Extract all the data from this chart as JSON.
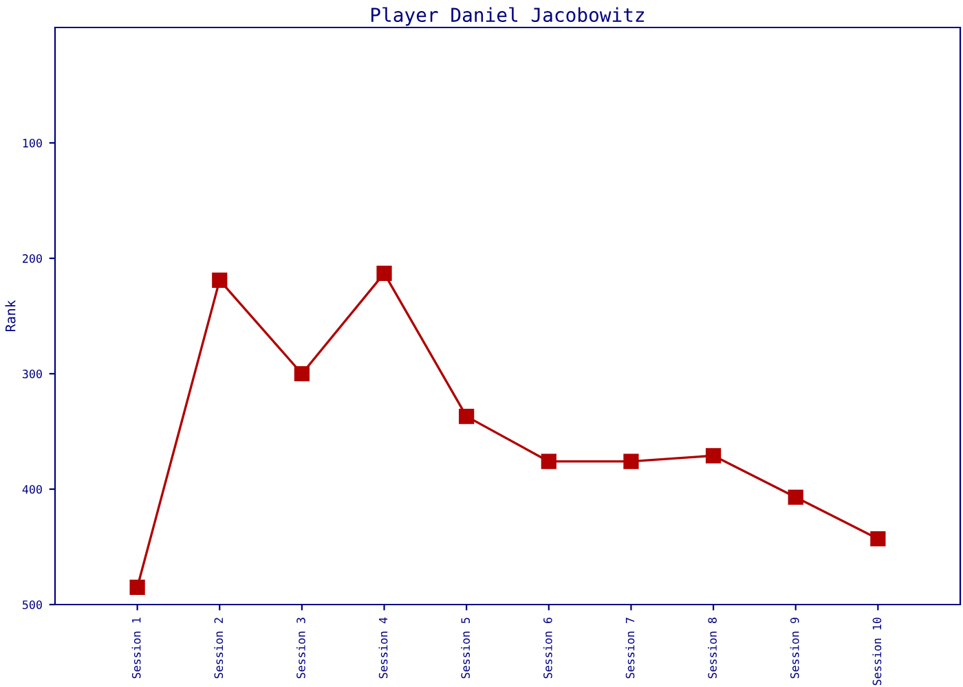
{
  "chart_data": {
    "type": "line",
    "title": "Player Daniel Jacobowitz",
    "ylabel": "Rank",
    "categories": [
      "Session 1",
      "Session 2",
      "Session 3",
      "Session 4",
      "Session 5",
      "Session 6",
      "Session 7",
      "Session 8",
      "Session 9",
      "Session 10"
    ],
    "series": [
      {
        "color": "#b00000",
        "values": [
          485,
          219,
          300,
          213,
          337,
          376,
          376,
          371,
          407,
          443
        ]
      }
    ],
    "ylim": [
      500,
      0
    ],
    "yticks": [
      100,
      200,
      300,
      400,
      500
    ],
    "marker": "square",
    "line_style": "solid",
    "grid": false
  }
}
